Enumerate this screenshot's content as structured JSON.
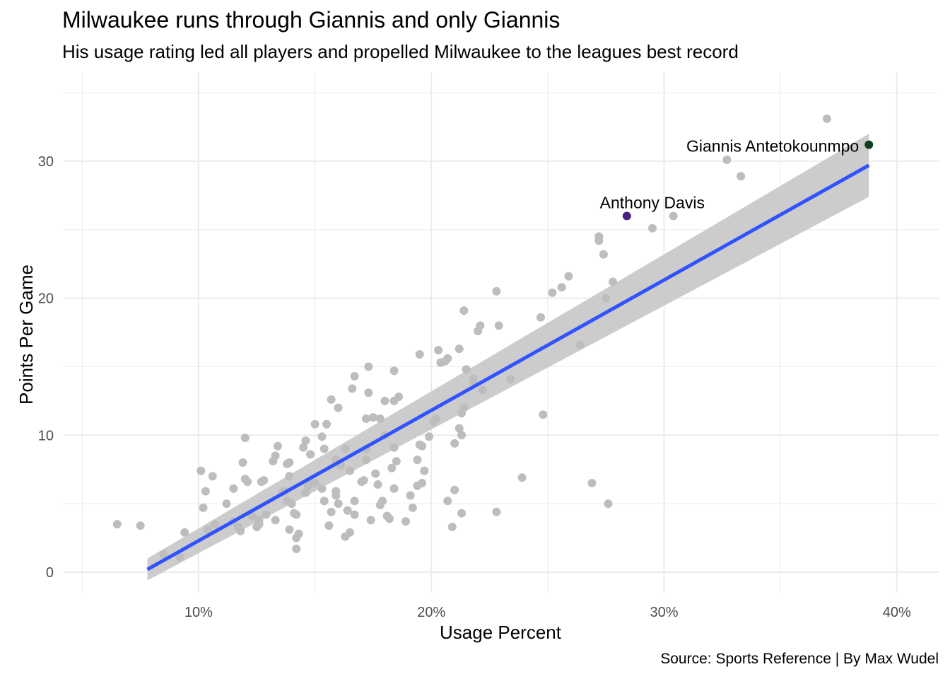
{
  "chart_data": {
    "type": "scatter",
    "title": "Milwaukee runs through Giannis and only Giannis",
    "subtitle": "His usage rating led all players and propelled Milwaukee to the leagues best record",
    "caption": "Source: Sports Reference | By Max Wudel",
    "xlabel": "Usage Percent",
    "ylabel": "Points Per Game",
    "xlim": [
      4.2,
      41.8
    ],
    "ylim": [
      -1.5,
      36.5
    ],
    "x_ticks": [
      10,
      20,
      30,
      40
    ],
    "x_tick_labels": [
      "10%",
      "20%",
      "30%",
      "40%"
    ],
    "y_ticks": [
      0,
      10,
      20,
      30
    ],
    "y_tick_labels": [
      "0",
      "10",
      "20",
      "30"
    ],
    "grid": true,
    "colors": {
      "points": "#bdbdbd",
      "trend_line": "#3152ff",
      "confidence_band": "#cccccc",
      "giannis": "#0f3d1e",
      "davis": "#4b2083",
      "grid": "#ebebeb"
    },
    "trend": {
      "x": [
        7.8,
        38.8
      ],
      "y": [
        0.2,
        29.7
      ],
      "band_lower": [
        -0.6,
        27.4
      ],
      "band_upper": [
        1.0,
        32.0
      ]
    },
    "highlighted": [
      {
        "name": "Giannis Antetokounmpo",
        "x": 38.8,
        "y": 31.2,
        "color": "#0f3d1e"
      },
      {
        "name": "Anthony Davis",
        "x": 28.4,
        "y": 26.0,
        "color": "#4b2083"
      }
    ],
    "points": [
      [
        6.5,
        3.5
      ],
      [
        7.5,
        3.4
      ],
      [
        8.5,
        1.3
      ],
      [
        9.2,
        1.1
      ],
      [
        9.4,
        2.9
      ],
      [
        10.1,
        7.4
      ],
      [
        10.2,
        4.7
      ],
      [
        10.3,
        5.9
      ],
      [
        10.4,
        3.1
      ],
      [
        10.6,
        7.0
      ],
      [
        10.7,
        3.5
      ],
      [
        11.2,
        5.0
      ],
      [
        11.5,
        6.1
      ],
      [
        11.5,
        3.7
      ],
      [
        11.7,
        3.3
      ],
      [
        11.8,
        3.0
      ],
      [
        11.9,
        8.0
      ],
      [
        12.0,
        9.8
      ],
      [
        12.0,
        6.8
      ],
      [
        12.1,
        6.6
      ],
      [
        12.3,
        4.1
      ],
      [
        12.5,
        3.3
      ],
      [
        12.6,
        3.5
      ],
      [
        12.6,
        3.8
      ],
      [
        12.7,
        6.6
      ],
      [
        12.8,
        6.7
      ],
      [
        12.9,
        4.2
      ],
      [
        13.2,
        8.1
      ],
      [
        13.3,
        3.8
      ],
      [
        13.3,
        8.5
      ],
      [
        13.4,
        9.2
      ],
      [
        13.6,
        5.8
      ],
      [
        13.7,
        5.9
      ],
      [
        13.8,
        7.9
      ],
      [
        13.8,
        5.2
      ],
      [
        13.9,
        8.0
      ],
      [
        13.9,
        7.0
      ],
      [
        13.9,
        3.1
      ],
      [
        14.0,
        5.0
      ],
      [
        14.1,
        4.3
      ],
      [
        14.2,
        4.2
      ],
      [
        14.2,
        2.5
      ],
      [
        14.2,
        1.7
      ],
      [
        14.3,
        2.8
      ],
      [
        14.5,
        9.1
      ],
      [
        14.6,
        9.6
      ],
      [
        14.6,
        5.8
      ],
      [
        14.7,
        6.3
      ],
      [
        14.8,
        8.6
      ],
      [
        14.9,
        6.5
      ],
      [
        15.0,
        10.8
      ],
      [
        15.0,
        6.5
      ],
      [
        15.3,
        9.9
      ],
      [
        15.3,
        6.1
      ],
      [
        15.4,
        9.0
      ],
      [
        15.4,
        5.2
      ],
      [
        15.5,
        10.8
      ],
      [
        15.6,
        3.4
      ],
      [
        15.7,
        4.4
      ],
      [
        15.7,
        12.6
      ],
      [
        15.9,
        5.9
      ],
      [
        15.9,
        5.6
      ],
      [
        15.9,
        8.2
      ],
      [
        16.0,
        12.0
      ],
      [
        16.0,
        5.0
      ],
      [
        16.1,
        7.8
      ],
      [
        16.3,
        9.0
      ],
      [
        16.3,
        2.6
      ],
      [
        16.4,
        4.5
      ],
      [
        16.5,
        2.9
      ],
      [
        16.5,
        7.4
      ],
      [
        16.6,
        13.4
      ],
      [
        16.7,
        14.3
      ],
      [
        16.7,
        5.2
      ],
      [
        16.7,
        4.2
      ],
      [
        17.0,
        6.6
      ],
      [
        17.1,
        6.7
      ],
      [
        17.2,
        11.2
      ],
      [
        17.2,
        9.0
      ],
      [
        17.2,
        8.2
      ],
      [
        17.3,
        15.0
      ],
      [
        17.3,
        13.1
      ],
      [
        17.4,
        3.8
      ],
      [
        17.5,
        11.3
      ],
      [
        17.6,
        7.2
      ],
      [
        17.7,
        6.4
      ],
      [
        17.8,
        11.2
      ],
      [
        17.8,
        4.9
      ],
      [
        17.9,
        5.2
      ],
      [
        18.0,
        10.0
      ],
      [
        18.0,
        12.5
      ],
      [
        18.1,
        4.1
      ],
      [
        18.2,
        3.9
      ],
      [
        18.3,
        7.6
      ],
      [
        18.4,
        12.5
      ],
      [
        18.4,
        14.7
      ],
      [
        18.4,
        9.1
      ],
      [
        18.4,
        6.1
      ],
      [
        18.5,
        8.1
      ],
      [
        18.6,
        12.8
      ],
      [
        18.9,
        3.7
      ],
      [
        19.1,
        5.6
      ],
      [
        19.2,
        4.7
      ],
      [
        19.4,
        8.2
      ],
      [
        19.4,
        6.3
      ],
      [
        19.5,
        15.9
      ],
      [
        19.5,
        9.3
      ],
      [
        19.6,
        9.2
      ],
      [
        19.6,
        6.5
      ],
      [
        19.7,
        7.4
      ],
      [
        19.9,
        9.9
      ],
      [
        20.1,
        11.0
      ],
      [
        20.2,
        11.2
      ],
      [
        20.3,
        16.2
      ],
      [
        20.4,
        15.3
      ],
      [
        20.6,
        15.4
      ],
      [
        20.7,
        15.6
      ],
      [
        20.7,
        5.2
      ],
      [
        20.9,
        3.3
      ],
      [
        21.0,
        9.4
      ],
      [
        21.0,
        6.0
      ],
      [
        21.2,
        10.5
      ],
      [
        21.2,
        16.3
      ],
      [
        21.3,
        11.6
      ],
      [
        21.3,
        10.0
      ],
      [
        21.3,
        4.3
      ],
      [
        21.4,
        19.1
      ],
      [
        21.4,
        12.0
      ],
      [
        21.5,
        14.8
      ],
      [
        21.8,
        14.1
      ],
      [
        21.8,
        14.0
      ],
      [
        22.0,
        17.6
      ],
      [
        22.1,
        18.0
      ],
      [
        22.2,
        13.3
      ],
      [
        22.8,
        20.5
      ],
      [
        22.9,
        18.0
      ],
      [
        22.8,
        4.4
      ],
      [
        23.4,
        14.1
      ],
      [
        23.9,
        6.9
      ],
      [
        24.7,
        18.6
      ],
      [
        24.8,
        11.5
      ],
      [
        25.2,
        20.4
      ],
      [
        25.6,
        20.8
      ],
      [
        25.9,
        21.6
      ],
      [
        26.4,
        16.6
      ],
      [
        26.9,
        6.5
      ],
      [
        27.2,
        24.5
      ],
      [
        27.2,
        24.2
      ],
      [
        27.4,
        23.2
      ],
      [
        27.5,
        20.0
      ],
      [
        27.6,
        5.0
      ],
      [
        27.8,
        21.2
      ],
      [
        29.5,
        25.1
      ],
      [
        30.4,
        26.0
      ],
      [
        32.7,
        30.1
      ],
      [
        33.3,
        28.9
      ],
      [
        37.0,
        33.1
      ]
    ]
  }
}
